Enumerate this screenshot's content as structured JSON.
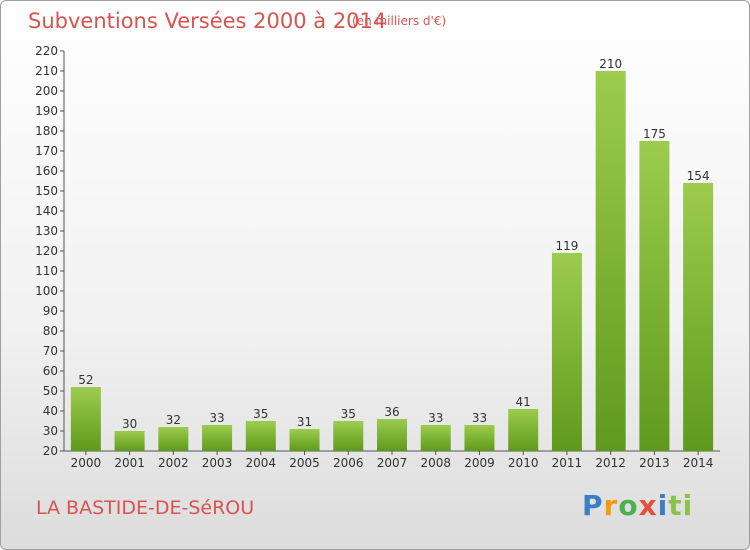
{
  "title": "Subventions Versées 2000 à 2014",
  "subtitle": "(en milliers d'€)",
  "location": "LA BASTIDE-DE-SéROU",
  "brand": {
    "text": "Proxiti",
    "letters": [
      "P",
      "r",
      "o",
      "x",
      "i",
      "ti"
    ],
    "colors": [
      "#3a7fc4",
      "#f39c12",
      "#4caf50",
      "#e74c3c",
      "#3a7fc4",
      "#8bc34a"
    ]
  },
  "colors": {
    "bar_top": "#9ccc4d",
    "bar_bottom": "#5f9a1c",
    "text_accent": "#d9534f"
  },
  "chart_data": {
    "type": "bar",
    "categories": [
      "2000",
      "2001",
      "2002",
      "2003",
      "2004",
      "2005",
      "2006",
      "2007",
      "2008",
      "2009",
      "2010",
      "2011",
      "2012",
      "2013",
      "2014"
    ],
    "values": [
      52,
      30,
      32,
      33,
      35,
      31,
      35,
      36,
      33,
      33,
      41,
      119,
      210,
      175,
      154
    ],
    "data_labels": [
      "52",
      "30",
      "32",
      "33",
      "35",
      "31",
      "35",
      "36",
      "33",
      "33",
      "41",
      "119",
      "210",
      "175",
      "154"
    ],
    "yticks": [
      20,
      30,
      40,
      50,
      60,
      70,
      80,
      90,
      100,
      110,
      120,
      130,
      140,
      150,
      160,
      170,
      180,
      190,
      200,
      210,
      220
    ],
    "ylim": [
      20,
      220
    ],
    "grid": false,
    "legend": "none"
  }
}
